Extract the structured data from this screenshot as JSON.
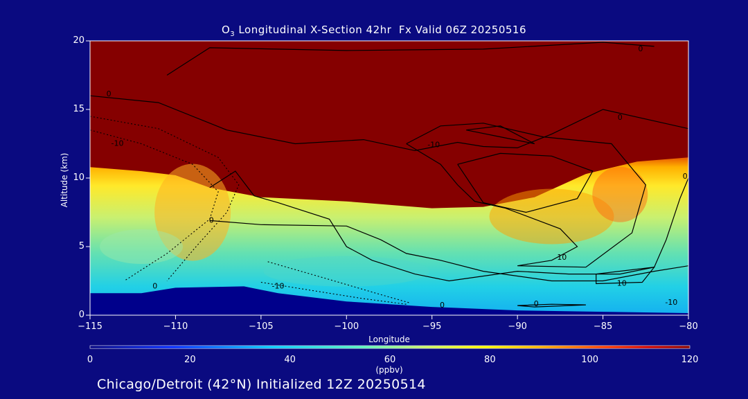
{
  "title": {
    "pre": "O",
    "sub": "3",
    "post": " Longitudinal X-Section 42hr  Fx Valid 06Z 20250516"
  },
  "footer": "Chicago/Detroit (42°N) Initialized 12Z 20250514",
  "colors": {
    "background": "#0a0a80",
    "terrain": "#00008b",
    "stratosphere": "#850000"
  },
  "chart_data": {
    "type": "heatmap",
    "title": "O3 Longitudinal X-Section 42hr  Fx Valid 06Z 20250516",
    "xlabel": "Longitude",
    "ylabel": "Altitude (km)",
    "xlim": [
      -115,
      -80
    ],
    "ylim": [
      0,
      20
    ],
    "x_ticks": [
      -115,
      -110,
      -105,
      -100,
      -95,
      -90,
      -85,
      -80
    ],
    "y_ticks": [
      0,
      5,
      10,
      15,
      20
    ],
    "colorbar": {
      "label": "(ppbv)",
      "min": 0,
      "max": 120,
      "ticks": [
        0,
        20,
        40,
        60,
        80,
        100,
        120
      ]
    },
    "tropopause_height_km": [
      {
        "lon": -115,
        "alt": 10.8
      },
      {
        "lon": -112,
        "alt": 10.5
      },
      {
        "lon": -110,
        "alt": 10.2
      },
      {
        "lon": -108,
        "alt": 9.3
      },
      {
        "lon": -105,
        "alt": 8.6
      },
      {
        "lon": -100,
        "alt": 8.3
      },
      {
        "lon": -95,
        "alt": 7.8
      },
      {
        "lon": -92,
        "alt": 7.9
      },
      {
        "lon": -89,
        "alt": 8.6
      },
      {
        "lon": -86,
        "alt": 10.3
      },
      {
        "lon": -83,
        "alt": 11.2
      },
      {
        "lon": -80,
        "alt": 11.5
      }
    ],
    "terrain_height_km": [
      {
        "lon": -115,
        "alt": 1.6
      },
      {
        "lon": -112,
        "alt": 1.6
      },
      {
        "lon": -110,
        "alt": 2.0
      },
      {
        "lon": -106,
        "alt": 2.1
      },
      {
        "lon": -104,
        "alt": 1.6
      },
      {
        "lon": -100,
        "alt": 1.0
      },
      {
        "lon": -95,
        "alt": 0.6
      },
      {
        "lon": -90,
        "alt": 0.35
      },
      {
        "lon": -85,
        "alt": 0.25
      },
      {
        "lon": -80,
        "alt": 0.15
      }
    ],
    "contour_labels": [
      {
        "text": "0",
        "lon": -113.9,
        "alt": 16.1
      },
      {
        "text": "-10",
        "lon": -113.4,
        "alt": 12.5
      },
      {
        "text": "0",
        "lon": -107.9,
        "alt": 6.9
      },
      {
        "text": "-10",
        "lon": -104.0,
        "alt": 2.1
      },
      {
        "text": "0",
        "lon": -111.2,
        "alt": 2.1
      },
      {
        "text": "0",
        "lon": -94.4,
        "alt": 0.7
      },
      {
        "text": "-10",
        "lon": -94.9,
        "alt": 12.4
      },
      {
        "text": "0",
        "lon": -82.8,
        "alt": 19.4
      },
      {
        "text": "0",
        "lon": -84.0,
        "alt": 14.4
      },
      {
        "text": "10",
        "lon": -87.4,
        "alt": 4.2
      },
      {
        "text": "10",
        "lon": -83.9,
        "alt": 2.3
      },
      {
        "text": "0",
        "lon": -88.9,
        "alt": 0.8
      },
      {
        "text": "-10",
        "lon": -81.0,
        "alt": 0.9
      },
      {
        "text": "0",
        "lon": -80.2,
        "alt": 10.1
      }
    ]
  }
}
